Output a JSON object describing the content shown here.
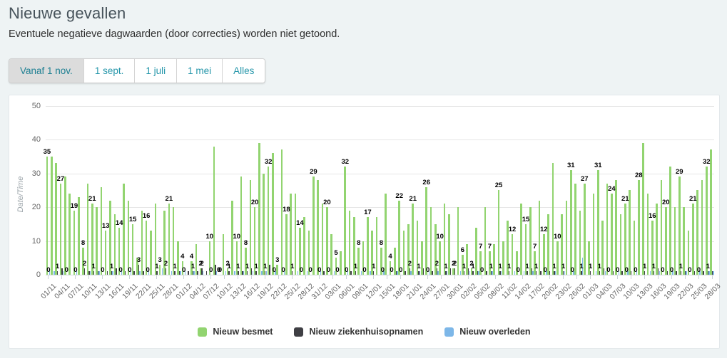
{
  "page": {
    "title": "Nieuwe gevallen",
    "subtitle": "Eventuele negatieve dagwaarden (door correcties) worden niet getoond."
  },
  "range_buttons": {
    "items": [
      {
        "label": "Vanaf 1 nov.",
        "active": true
      },
      {
        "label": "1 sept.",
        "active": false
      },
      {
        "label": "1 juli",
        "active": false
      },
      {
        "label": "1 mei",
        "active": false
      },
      {
        "label": "Alles",
        "active": false
      }
    ]
  },
  "colors": {
    "page_bg": "#eef3f4",
    "panel_bg": "#ffffff",
    "accent_teal": "#2596aa",
    "besmet_green": "#92d470",
    "ziekenhuis_dark": "#3f3f44",
    "overleden_blue": "#7db7e8"
  },
  "chart_data": {
    "type": "bar",
    "title": "",
    "xlabel": "",
    "ylabel": "Date/Time",
    "ylim": [
      0,
      50
    ],
    "yticks": [
      0,
      10,
      20,
      30,
      40,
      50
    ],
    "grid": true,
    "legend_position": "bottom-center",
    "days_per_tick": 3,
    "tick_labels": [
      "01/11",
      "04/11",
      "07/11",
      "10/11",
      "13/11",
      "16/11",
      "19/11",
      "22/11",
      "25/11",
      "28/11",
      "01/12",
      "04/12",
      "07/12",
      "10/12",
      "13/12",
      "16/12",
      "19/12",
      "22/12",
      "25/12",
      "28/12",
      "31/12",
      "03/01",
      "06/01",
      "09/01",
      "12/01",
      "15/01",
      "18/01",
      "21/01",
      "24/01",
      "27/01",
      "30/01",
      "02/02",
      "05/02",
      "08/02",
      "11/02",
      "14/02",
      "17/02",
      "20/02",
      "23/02",
      "26/02",
      "01/03",
      "04/03",
      "07/03",
      "10/03",
      "13/03",
      "16/03",
      "19/03",
      "22/03",
      "25/03",
      "28/03"
    ],
    "series": [
      {
        "name": "Nieuw besmet",
        "color": "#92d470",
        "show_labels": true,
        "values": [
          35,
          35,
          33,
          27,
          29,
          24,
          19,
          23,
          8,
          27,
          21,
          20,
          26,
          13,
          22,
          18,
          14,
          27,
          22,
          15,
          5,
          19,
          16,
          13,
          21,
          3,
          19,
          21,
          20,
          10,
          4,
          0,
          4,
          9,
          2,
          0,
          10,
          38,
          0,
          12,
          2,
          22,
          10,
          29,
          8,
          28,
          20,
          39,
          30,
          32,
          36,
          3,
          37,
          18,
          24,
          24,
          14,
          17,
          13,
          29,
          28,
          21,
          20,
          12,
          5,
          7,
          32,
          19,
          17,
          8,
          10,
          17,
          13,
          17,
          8,
          24,
          4,
          8,
          22,
          13,
          15,
          21,
          16,
          10,
          26,
          20,
          15,
          10,
          21,
          18,
          2,
          20,
          6,
          9,
          2,
          14,
          7,
          20,
          7,
          9,
          25,
          10,
          16,
          12,
          7,
          21,
          15,
          20,
          7,
          22,
          12,
          18,
          33,
          10,
          18,
          22,
          31,
          27,
          19,
          27,
          10,
          24,
          31,
          16,
          27,
          24,
          28,
          18,
          21,
          25,
          16,
          28,
          39,
          24,
          16,
          21,
          28,
          20,
          32,
          20,
          29,
          20,
          13,
          21,
          25,
          28,
          32,
          37
        ]
      },
      {
        "name": "Nieuw ziekenhuisopnamen",
        "color": "#3f3f44",
        "show_labels": true,
        "values": [
          0,
          0,
          1,
          2,
          0,
          0,
          0,
          0,
          2,
          1,
          1,
          1,
          0,
          1,
          1,
          2,
          0,
          1,
          0,
          1,
          3,
          1,
          0,
          0,
          1,
          0,
          2,
          0,
          1,
          1,
          0,
          1,
          1,
          1,
          2,
          1,
          0,
          3,
          0,
          0,
          1,
          0,
          1,
          1,
          1,
          2,
          1,
          0,
          1,
          3,
          0,
          0,
          0,
          0,
          1,
          0,
          0,
          0,
          0,
          0,
          0,
          1,
          0,
          0,
          0,
          0,
          0,
          1,
          1,
          0,
          0,
          0,
          1,
          0,
          0,
          0,
          0,
          1,
          0,
          1,
          2,
          0,
          1,
          2,
          0,
          1,
          2,
          0,
          1,
          2,
          2,
          0,
          1,
          2,
          1,
          1,
          0,
          1,
          1,
          0,
          1,
          0,
          1,
          0,
          0,
          0,
          1,
          2,
          1,
          1,
          0,
          1,
          1,
          0,
          1,
          0,
          0,
          0,
          1,
          0,
          1,
          0,
          1,
          2,
          0,
          1,
          0,
          1,
          0,
          1,
          0,
          0,
          1,
          0,
          1,
          2,
          0,
          1,
          0,
          1,
          1,
          1,
          0,
          1,
          0,
          1,
          1,
          1
        ]
      },
      {
        "name": "Nieuw overleden",
        "color": "#7db7e8",
        "show_labels": false,
        "values": [
          2,
          1,
          0,
          1,
          0,
          0,
          1,
          0,
          0,
          1,
          0,
          1,
          0,
          0,
          1,
          0,
          1,
          0,
          1,
          0,
          1,
          0,
          1,
          0,
          0,
          2,
          0,
          1,
          0,
          1,
          1,
          0,
          1,
          0,
          1,
          0,
          0,
          1,
          0,
          1,
          0,
          1,
          0,
          1,
          0,
          1,
          0,
          1,
          1,
          0,
          1,
          0,
          1,
          0,
          0,
          1,
          0,
          1,
          0,
          0,
          1,
          0,
          0,
          1,
          0,
          0,
          1,
          0,
          0,
          1,
          0,
          1,
          0,
          0,
          1,
          0,
          0,
          1,
          0,
          0,
          1,
          0,
          1,
          0,
          1,
          0,
          1,
          0,
          1,
          0,
          0,
          1,
          0,
          1,
          0,
          1,
          0,
          0,
          1,
          0,
          1,
          0,
          0,
          1,
          0,
          1,
          0,
          1,
          0,
          0,
          1,
          0,
          1,
          0,
          1,
          0,
          1,
          0,
          5,
          0,
          0,
          1,
          0,
          1,
          0,
          0,
          1,
          0,
          1,
          0,
          1,
          0,
          0,
          1,
          0,
          1,
          0,
          0,
          1,
          0,
          0,
          1,
          0,
          0,
          1,
          0,
          1,
          1
        ]
      }
    ]
  }
}
